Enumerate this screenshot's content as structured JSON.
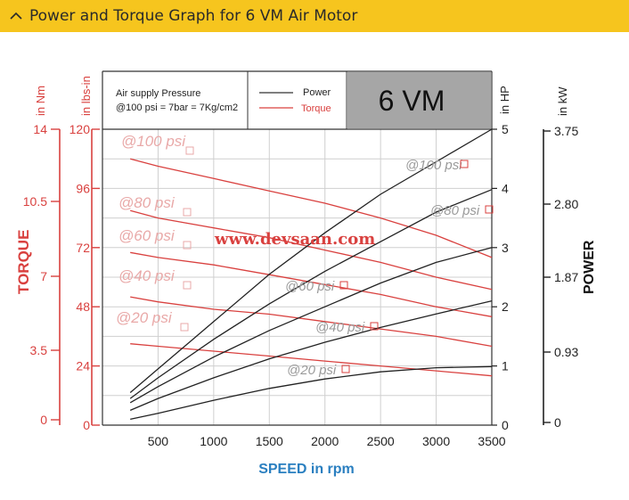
{
  "header": {
    "title": "Power and Torque Graph for 6 VM Air Motor",
    "icon": "chevron-up-icon",
    "bar_color": "#f6c51e"
  },
  "chart_data": {
    "type": "line",
    "x": [
      250,
      500,
      1000,
      1500,
      2000,
      2500,
      3000,
      3500
    ],
    "xlabel": "SPEED in rpm",
    "xticks": [
      500,
      1000,
      1500,
      2000,
      2500,
      3000,
      3500
    ],
    "xlim": [
      0,
      3500
    ],
    "grid": true,
    "model_badge": "6 VM",
    "legend_note": [
      "Air supply Pressure",
      "@100 psi = 7bar = 7Kg/cm2"
    ],
    "legend": [
      {
        "name": "Power",
        "color": "#333333"
      },
      {
        "name": "Torque",
        "color": "#d9413f"
      }
    ],
    "watermark": "www.devsaan.com",
    "axes": {
      "torque_nm": {
        "label": "in Nm",
        "ticks": [
          "14",
          "10.5",
          "7",
          "3.5",
          "0"
        ],
        "color": "#d9413f"
      },
      "torque_lbs_in": {
        "label": "in lbs-in",
        "ticks": [
          "120",
          "96",
          "72",
          "48",
          "24",
          "0"
        ],
        "ylim": [
          0,
          120
        ],
        "color": "#d9413f"
      },
      "torque_title": "TORQUE",
      "power_hp": {
        "label": "in HP",
        "ticks": [
          "5",
          "4",
          "3",
          "2",
          "1",
          "0"
        ],
        "ylim": [
          0,
          5
        ],
        "color": "#222222"
      },
      "power_kw": {
        "label": "in kW",
        "ticks": [
          "3.75",
          "2.80",
          "1.87",
          "0.93",
          "0"
        ],
        "color": "#222222"
      },
      "power_title": "POWER"
    },
    "power_series": [
      {
        "pressure": "@100 psi",
        "values": [
          0.55,
          0.95,
          1.75,
          2.55,
          3.25,
          3.9,
          4.45,
          5.0
        ]
      },
      {
        "pressure": "@80 psi",
        "values": [
          0.45,
          0.8,
          1.45,
          2.05,
          2.6,
          3.1,
          3.6,
          3.98
        ]
      },
      {
        "pressure": "@60 psi",
        "values": [
          0.38,
          0.65,
          1.15,
          1.6,
          2.0,
          2.4,
          2.75,
          3.0
        ]
      },
      {
        "pressure": "@40 psi",
        "values": [
          0.25,
          0.45,
          0.8,
          1.12,
          1.4,
          1.65,
          1.88,
          2.1
        ]
      },
      {
        "pressure": "@20 psi",
        "values": [
          0.1,
          0.2,
          0.42,
          0.62,
          0.78,
          0.9,
          0.97,
          0.99
        ]
      }
    ],
    "torque_series": [
      {
        "pressure": "@100 psi",
        "values": [
          108,
          105,
          100,
          95,
          90,
          84,
          77,
          68
        ]
      },
      {
        "pressure": "@80 psi",
        "values": [
          87,
          84,
          80,
          76,
          71,
          66,
          60,
          55
        ]
      },
      {
        "pressure": "@60 psi",
        "values": [
          70,
          68,
          65,
          61,
          57,
          53,
          48,
          44
        ]
      },
      {
        "pressure": "@40 psi",
        "values": [
          52,
          50,
          47,
          45,
          42,
          39,
          36,
          32
        ]
      },
      {
        "pressure": "@20 psi",
        "values": [
          33,
          32,
          30,
          28,
          26,
          24,
          22,
          20
        ]
      }
    ],
    "torque_labels": [
      "@100 psi",
      "@80 psi",
      "@60 psi",
      "@40 psi",
      "@20 psi"
    ],
    "power_labels": [
      "@100 psi",
      "@80 psi",
      "@60 psi",
      "@40 psi",
      "@20 psi"
    ]
  }
}
